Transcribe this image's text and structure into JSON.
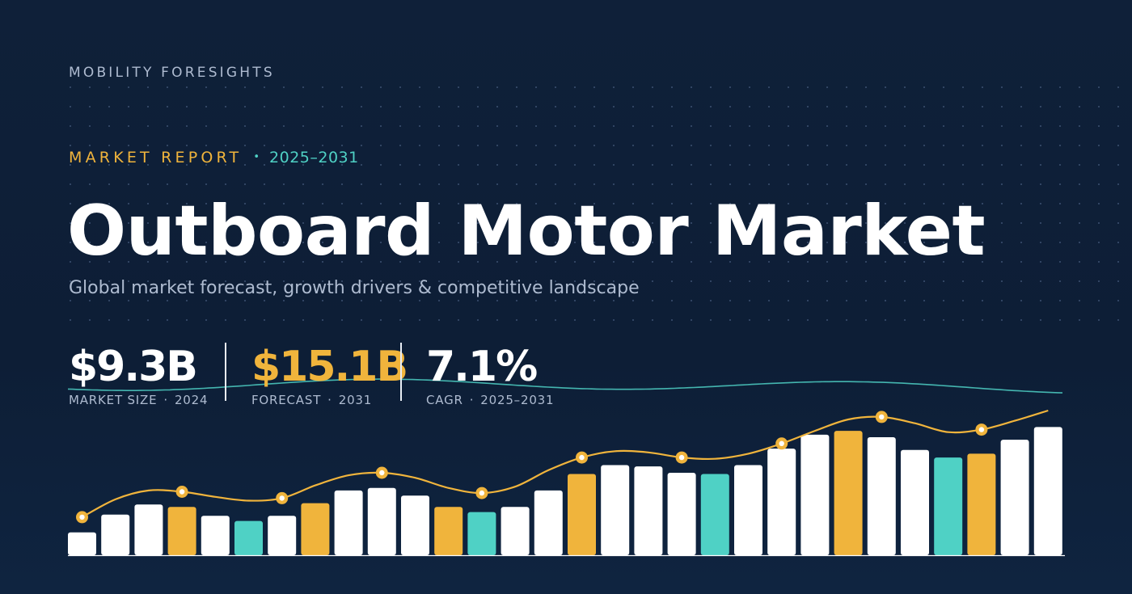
{
  "brand": "MOBILITY FORESIGHTS",
  "eyebrow": {
    "label": "MARKET REPORT",
    "separator": "•",
    "years": "2025–2031"
  },
  "title": "Outboard Motor Market",
  "subtitle": "Global market forecast, growth drivers & competitive landscape",
  "stats": [
    {
      "value": "$9.3B",
      "label": "MARKET SIZE",
      "period": "2024",
      "color": "#ffffff"
    },
    {
      "value": "$15.1B",
      "label": "FORECAST",
      "period": "2031",
      "color": "#f0b43c"
    },
    {
      "value": "7.1%",
      "label": "CAGR",
      "period": "2025–2031",
      "color": "#ffffff"
    }
  ],
  "colors": {
    "background": "#0f2039",
    "white_bar": "#ffffff",
    "accent_gold": "#f0b43c",
    "accent_teal": "#4fd1c5",
    "muted_text": "#aebbd0"
  },
  "chart_data": {
    "type": "bar",
    "title": "",
    "xlabel": "",
    "ylabel": "",
    "ylim": [
      0,
      100
    ],
    "grid": false,
    "axes_shown": false,
    "bars": {
      "values": [
        18,
        32,
        40,
        38,
        31,
        27,
        31,
        41,
        51,
        53,
        47,
        38,
        34,
        38,
        51,
        64,
        71,
        70,
        65,
        64,
        71,
        84,
        95,
        98,
        93,
        83,
        77,
        80,
        91,
        101
      ],
      "colors": [
        "white",
        "white",
        "white",
        "gold",
        "white",
        "teal",
        "white",
        "gold",
        "white",
        "white",
        "white",
        "gold",
        "teal",
        "white",
        "white",
        "gold",
        "white",
        "white",
        "white",
        "teal",
        "white",
        "white",
        "white",
        "gold",
        "white",
        "white",
        "teal",
        "gold",
        "white",
        "white"
      ]
    },
    "trend_line": {
      "color": "gold",
      "values": [
        30,
        44,
        51,
        50,
        46,
        43,
        45,
        55,
        63,
        65,
        61,
        53,
        49,
        54,
        67,
        77,
        82,
        81,
        77,
        76,
        80,
        88,
        98,
        107,
        109,
        104,
        97,
        99,
        106,
        114
      ],
      "marked_points": [
        0,
        3,
        6,
        9,
        12,
        15,
        18,
        21,
        24,
        27
      ]
    },
    "wave_line": {
      "color": "teal"
    }
  }
}
